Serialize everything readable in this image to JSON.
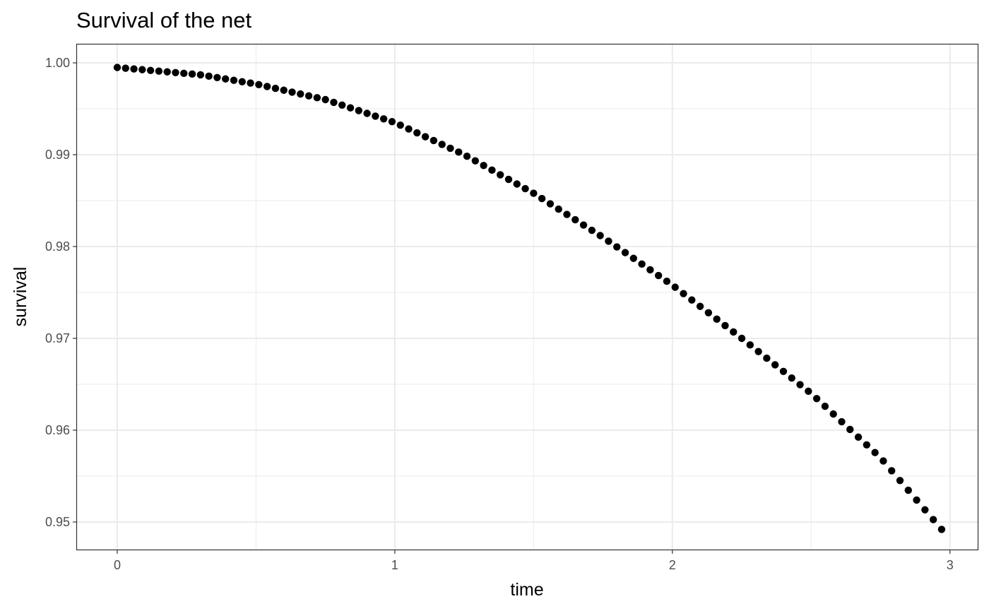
{
  "chart_data": {
    "type": "scatter",
    "title": "Survival of the net",
    "xlabel": "time",
    "ylabel": "survival",
    "xlim": [
      -0.145,
      3.1
    ],
    "ylim": [
      0.947,
      1.002
    ],
    "x_ticks": [
      0,
      1,
      2,
      3
    ],
    "x_tick_labels": [
      "0",
      "1",
      "2",
      "3"
    ],
    "x_minor_ticks": [
      0.5,
      1.5,
      2.5
    ],
    "y_ticks": [
      0.95,
      0.96,
      0.97,
      0.98,
      0.99,
      1.0
    ],
    "y_tick_labels": [
      "0.95",
      "0.96",
      "0.97",
      "0.98",
      "0.99",
      "1.00"
    ],
    "y_minor_ticks": [
      0.955,
      0.965,
      0.975,
      0.985,
      0.995
    ],
    "grid": true,
    "point_color": "#000000",
    "series": [
      {
        "x_start": 0,
        "x_end": 2.97,
        "n_points": 100,
        "points": [
          [
            0.0,
            0.9995
          ],
          [
            0.3,
            0.9987
          ],
          [
            0.5,
            0.9977
          ],
          [
            0.75,
            0.996
          ],
          [
            1.0,
            0.9935
          ],
          [
            1.25,
            0.99
          ],
          [
            1.5,
            0.9858
          ],
          [
            1.75,
            0.981
          ],
          [
            2.0,
            0.9758
          ],
          [
            2.25,
            0.97
          ],
          [
            2.5,
            0.964
          ],
          [
            2.75,
            0.957
          ],
          [
            2.97,
            0.9492
          ]
        ]
      }
    ]
  }
}
